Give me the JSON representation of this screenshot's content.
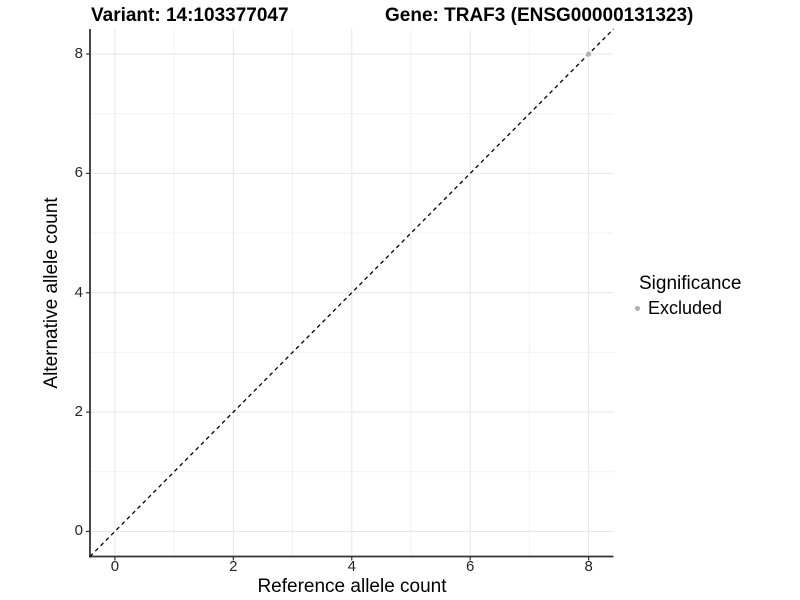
{
  "header": {
    "variant_title": "Variant: 14:103377047",
    "gene_title": "Gene: TRAF3 (ENSG00000131323)"
  },
  "axes": {
    "x_label": "Reference allele count",
    "y_label": "Alternative allele count"
  },
  "legend": {
    "title": "Significance",
    "entries": [
      {
        "label": "Excluded",
        "color": "#b0b0b0",
        "marker": "circle"
      }
    ]
  },
  "colors": {
    "background": "#ffffff",
    "grid_major": "#e6e6e6",
    "grid_minor": "#f2f2f2",
    "axis_line": "#333333",
    "tick_mark": "#333333",
    "tick_text": "#262626",
    "identity_line": "#000000",
    "point": "#b0b0b0"
  },
  "chart_data": {
    "type": "scatter",
    "title": "Variant: 14:103377047   Gene: TRAF3 (ENSG00000131323)",
    "xlabel": "Reference allele count",
    "ylabel": "Alternative allele count",
    "xlim": [
      -0.42,
      8.42
    ],
    "ylim": [
      -0.42,
      8.42
    ],
    "x_ticks": [
      0,
      2,
      4,
      6,
      8
    ],
    "y_ticks": [
      0,
      2,
      4,
      6,
      8
    ],
    "x_minor_ticks": [
      1,
      3,
      5,
      7
    ],
    "y_minor_ticks": [
      1,
      3,
      5,
      7
    ],
    "grid": true,
    "legend_position": "right",
    "reference_line": {
      "type": "identity",
      "style": "dashed",
      "from": [
        -0.42,
        -0.42
      ],
      "to": [
        8.42,
        8.42
      ]
    },
    "series": [
      {
        "name": "Excluded",
        "color": "#b0b0b0",
        "points": [
          {
            "x": 8,
            "y": 8
          }
        ]
      }
    ]
  }
}
